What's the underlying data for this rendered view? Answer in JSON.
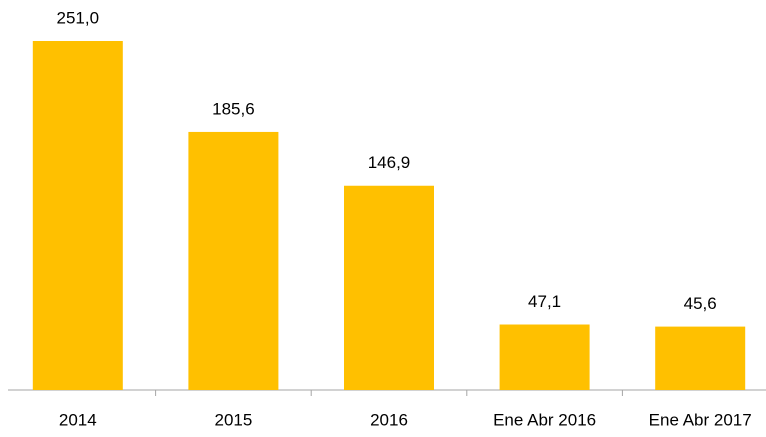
{
  "chart_data": {
    "type": "bar",
    "categories": [
      "2014",
      "2015",
      "2016",
      "Ene Abr 2016",
      "Ene Abr 2017"
    ],
    "values": [
      251.0,
      185.6,
      146.9,
      47.1,
      45.6
    ],
    "value_labels": [
      "251,0",
      "185,6",
      "146,9",
      "47,1",
      "45,6"
    ],
    "color": "#ffc000"
  }
}
